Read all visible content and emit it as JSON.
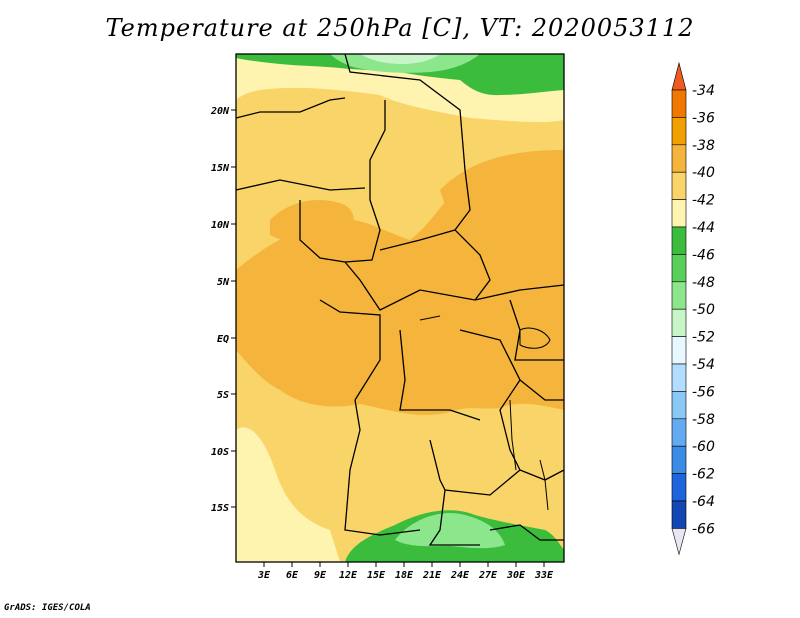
{
  "title": "Temperature at 250hPa [C], VT: 2020053112",
  "credit": "GrADS: IGES/COLA",
  "map": {
    "lat_labels": [
      "20N",
      "15N",
      "10N",
      "5N",
      "EQ",
      "5S",
      "10S",
      "15S"
    ],
    "lon_labels": [
      "3E",
      "6E",
      "9E",
      "12E",
      "15E",
      "18E",
      "21E",
      "24E",
      "27E",
      "30E",
      "33E"
    ]
  },
  "colorbar": {
    "levels": [
      "-34",
      "-36",
      "-38",
      "-40",
      "-42",
      "-44",
      "-46",
      "-48",
      "-50",
      "-52",
      "-54",
      "-56",
      "-58",
      "-60",
      "-62",
      "-64",
      "-66"
    ],
    "colors": [
      "#e03c00",
      "#f07800",
      "#f0a000",
      "#f5b43c",
      "#f9d468",
      "#fff3b0",
      "#3cbc3c",
      "#5ad05a",
      "#8ce68c",
      "#c8f5c8",
      "#e8f8ff",
      "#b4dcff",
      "#8cc8f5",
      "#64aaf0",
      "#3c8ce6",
      "#1e64dc",
      "#1446b4",
      "#0a1e78"
    ],
    "top_arrow_color": "#f05a1e",
    "bottom_arrow_color": "#e6e6f5"
  },
  "field_colors": {
    "m40": "#f5b43c",
    "m42": "#f9d468",
    "m44": "#fff3b0",
    "m46": "#5ad05a",
    "m48": "#8ce68c",
    "m50": "#c8f5c8"
  }
}
